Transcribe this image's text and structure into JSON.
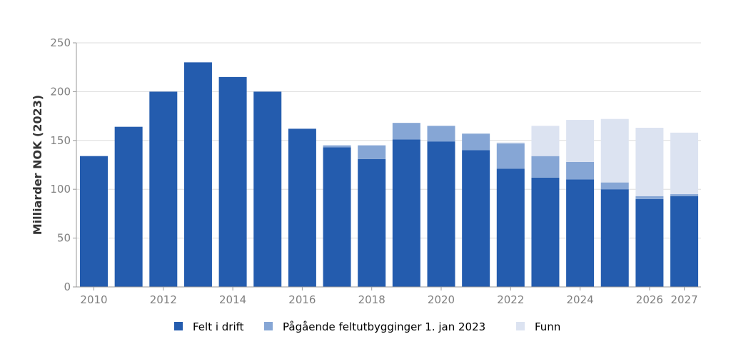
{
  "chart_data": {
    "type": "bar",
    "stacked": true,
    "title": "",
    "xlabel": "",
    "ylabel": "Milliarder NOK (2023)",
    "ylim": [
      0,
      250
    ],
    "yticks": [
      0,
      50,
      100,
      150,
      200,
      250
    ],
    "grid": true,
    "legend_position": "bottom",
    "categories": [
      2010,
      2011,
      2012,
      2013,
      2014,
      2015,
      2016,
      2017,
      2018,
      2019,
      2020,
      2021,
      2022,
      2023,
      2024,
      2025,
      2026,
      2027
    ],
    "x_tick_labels": [
      "2010",
      "2012",
      "2014",
      "2016",
      "2018",
      "2020",
      "2022",
      "2024",
      "2026",
      "2027"
    ],
    "series": [
      {
        "name": "Felt i drift",
        "color": "#245CAE",
        "values": [
          134,
          164,
          200,
          230,
          215,
          200,
          162,
          143,
          131,
          151,
          149,
          140,
          121,
          112,
          110,
          100,
          90,
          93
        ]
      },
      {
        "name": "Pågående feltutbygginger 1. jan 2023",
        "color": "#86A6D5",
        "values": [
          0,
          0,
          0,
          0,
          0,
          0,
          0,
          2,
          14,
          17,
          16,
          17,
          26,
          22,
          18,
          7,
          3,
          2
        ]
      },
      {
        "name": "Funn",
        "color": "#DCE3F1",
        "values": [
          0,
          0,
          0,
          0,
          0,
          0,
          0,
          0,
          0,
          0,
          0,
          0,
          1,
          31,
          43,
          65,
          70,
          63
        ]
      }
    ]
  }
}
